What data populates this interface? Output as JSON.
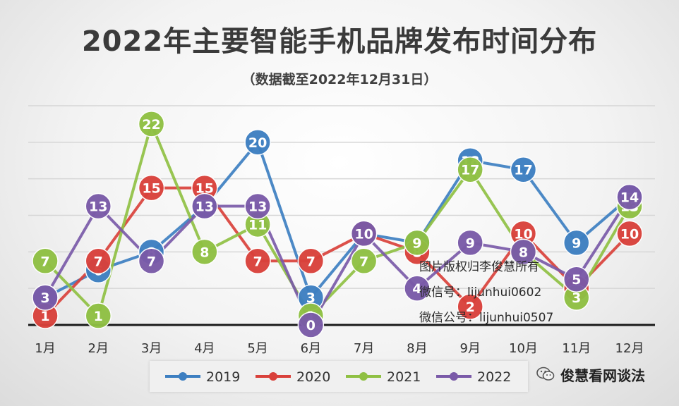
{
  "chart_data": {
    "type": "line",
    "title": "2022年主要智能手机品牌发布时间分布",
    "subtitle": "（数据截至2022年12月31日）",
    "categories": [
      "1月",
      "2月",
      "3月",
      "4月",
      "5月",
      "6月",
      "7月",
      "8月",
      "9月",
      "10月",
      "11月",
      "12月"
    ],
    "ylim": [
      0,
      24
    ],
    "grid": true,
    "legend_position": "bottom",
    "series": [
      {
        "name": "2019",
        "color": "#3d7fc1",
        "values": [
          3,
          6,
          8,
          13,
          20,
          3,
          10,
          9,
          18,
          17,
          9,
          14
        ]
      },
      {
        "name": "2020",
        "color": "#d9413b",
        "values": [
          1,
          7,
          15,
          15,
          7,
          7,
          10,
          8,
          2,
          10,
          4,
          10
        ]
      },
      {
        "name": "2021",
        "color": "#8fc043",
        "values": [
          7,
          1,
          22,
          8,
          11,
          1,
          7,
          9,
          17,
          8,
          3,
          13
        ]
      },
      {
        "name": "2022",
        "color": "#7a5aa8",
        "values": [
          3,
          13,
          7,
          13,
          13,
          0,
          10,
          4,
          9,
          8,
          5,
          14
        ]
      }
    ]
  },
  "watermark": {
    "line1": "图片版权归李俊慧所有",
    "line2": "微信号：lijunhui0602",
    "line3": "微信公号：lijunhui0507"
  },
  "brand": {
    "name": "俊慧看网谈法",
    "icon": "wechat-icon"
  }
}
